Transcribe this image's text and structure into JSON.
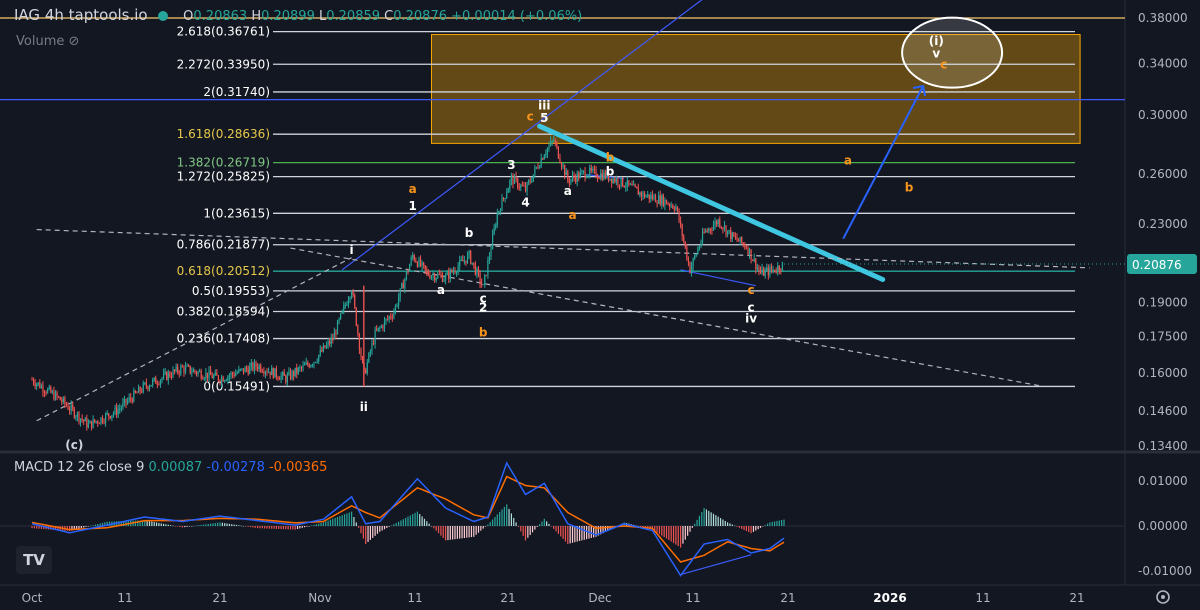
{
  "header": {
    "symbol": "IAG",
    "interval": "4h",
    "source": "taptools.io",
    "open_label": "O",
    "open": "0.20863",
    "high_label": "H",
    "high": "0.20899",
    "low_label": "L",
    "low": "0.20859",
    "close_label": "C",
    "close": "0.20876",
    "change": "+0.00014 (+0.06%)",
    "volume_label": "Volume"
  },
  "colors": {
    "background": "#131722",
    "up": "#26a69a",
    "down": "#ef5350",
    "fib_line": "#d1d4dc",
    "trendline": "#3fc6e0",
    "zone_fill": "#f7a600",
    "macd_line": "#2962ff",
    "signal_line": "#ff6d00"
  },
  "chart_data": [
    {
      "type": "candlestick",
      "title": "IAG 4h taptools.io",
      "price_axis": {
        "ticks": [
          0.38,
          0.34,
          0.3,
          0.26,
          0.23,
          0.19,
          0.175,
          0.16,
          0.146,
          0.134
        ],
        "tick_labels": [
          "0.38000",
          "0.34000",
          "0.30000",
          "0.26000",
          "0.23000",
          "0.19000",
          "0.17500",
          "0.16000",
          "0.14600",
          "0.13400"
        ],
        "scale": "log",
        "last_price": "0.20876"
      },
      "time_axis": {
        "ticks": [
          "Oct",
          "11",
          "21",
          "Nov",
          "11",
          "21",
          "Dec",
          "11",
          "21",
          "2026",
          "11",
          "21"
        ],
        "bold": [
          "2026"
        ]
      },
      "fib_levels": [
        {
          "ratio": "0",
          "price": 0.15491
        },
        {
          "ratio": "0.236",
          "price": 0.17408
        },
        {
          "ratio": "0.382",
          "price": 0.18594
        },
        {
          "ratio": "0.5",
          "price": 0.19553
        },
        {
          "ratio": "0.618",
          "price": 0.20512
        },
        {
          "ratio": "0.786",
          "price": 0.21877
        },
        {
          "ratio": "1",
          "price": 0.23615
        },
        {
          "ratio": "1.272",
          "price": 0.25825
        },
        {
          "ratio": "1.382",
          "price": 0.26719
        },
        {
          "ratio": "1.618",
          "price": 0.28636
        },
        {
          "ratio": "2",
          "price": 0.3174
        },
        {
          "ratio": "2.272",
          "price": 0.3395
        },
        {
          "ratio": "2.618",
          "price": 0.36761
        }
      ],
      "fib_labels": [
        "0(0.15491)",
        "0.236(0.17408)",
        "0.382(0.18594)",
        "0.5(0.19553)",
        "0.618(0.20512)",
        "0.786(0.21877)",
        "1(0.23615)",
        "1.272(0.25825)",
        "1.382(0.26719)",
        "1.618(0.28636)",
        "2(0.31740)",
        "2.272(0.33950)",
        "2.618(0.36761)"
      ],
      "price_path": [
        {
          "d": 0,
          "p": 0.1575
        },
        {
          "d": 3,
          "p": 0.15
        },
        {
          "d": 6,
          "p": 0.141
        },
        {
          "d": 9,
          "p": 0.146
        },
        {
          "d": 12,
          "p": 0.155
        },
        {
          "d": 16,
          "p": 0.162
        },
        {
          "d": 20,
          "p": 0.158
        },
        {
          "d": 24,
          "p": 0.163
        },
        {
          "d": 27,
          "p": 0.158
        },
        {
          "d": 30,
          "p": 0.165
        },
        {
          "d": 32,
          "p": 0.174
        },
        {
          "d": 34,
          "p": 0.197
        },
        {
          "d": 35.3,
          "p": 0.159
        },
        {
          "d": 36.5,
          "p": 0.176
        },
        {
          "d": 38.5,
          "p": 0.186
        },
        {
          "d": 40.5,
          "p": 0.213
        },
        {
          "d": 42,
          "p": 0.204
        },
        {
          "d": 44,
          "p": 0.202
        },
        {
          "d": 46.5,
          "p": 0.213
        },
        {
          "d": 48,
          "p": 0.197
        },
        {
          "d": 49.5,
          "p": 0.236
        },
        {
          "d": 51,
          "p": 0.257
        },
        {
          "d": 52.5,
          "p": 0.25
        },
        {
          "d": 54.5,
          "p": 0.274
        },
        {
          "d": 55.5,
          "p": 0.282
        },
        {
          "d": 57,
          "p": 0.256
        },
        {
          "d": 59,
          "p": 0.261
        },
        {
          "d": 61,
          "p": 0.259
        },
        {
          "d": 63,
          "p": 0.254
        },
        {
          "d": 65,
          "p": 0.247
        },
        {
          "d": 67,
          "p": 0.244
        },
        {
          "d": 68.5,
          "p": 0.24
        },
        {
          "d": 70,
          "p": 0.206
        },
        {
          "d": 71.5,
          "p": 0.225
        },
        {
          "d": 73,
          "p": 0.232
        },
        {
          "d": 74.5,
          "p": 0.223
        },
        {
          "d": 76,
          "p": 0.218
        },
        {
          "d": 77.5,
          "p": 0.204
        },
        {
          "d": 79,
          "p": 0.206
        },
        {
          "d": 80,
          "p": 0.2088
        }
      ],
      "wave_labels": [
        {
          "text": "(c)",
          "d": 4.5,
          "p": 0.133,
          "color": "#d1d4dc"
        },
        {
          "text": "i",
          "d": 34,
          "p": 0.214,
          "color": "#ffffff"
        },
        {
          "text": "ii",
          "d": 35.3,
          "p": 0.146,
          "color": "#ffffff"
        },
        {
          "text": "a",
          "d": 40.5,
          "p": 0.248,
          "color": "#f7931a"
        },
        {
          "text": "1",
          "d": 40.5,
          "p": 0.238,
          "color": "#ffffff"
        },
        {
          "text": "a",
          "d": 43.5,
          "p": 0.194,
          "color": "#ffffff"
        },
        {
          "text": "b",
          "d": 46.5,
          "p": 0.223,
          "color": "#ffffff"
        },
        {
          "text": "c",
          "d": 48,
          "p": 0.19,
          "color": "#ffffff"
        },
        {
          "text": "2",
          "d": 48,
          "p": 0.186,
          "color": "#ffffff"
        },
        {
          "text": "b",
          "d": 48,
          "p": 0.175,
          "color": "#f7931a"
        },
        {
          "text": "3",
          "d": 51,
          "p": 0.263,
          "color": "#ffffff"
        },
        {
          "text": "4",
          "d": 52.5,
          "p": 0.24,
          "color": "#ffffff"
        },
        {
          "text": "c",
          "d": 53,
          "p": 0.296,
          "color": "#f7931a"
        },
        {
          "text": "iii",
          "d": 54.5,
          "p": 0.304,
          "color": "#ffffff"
        },
        {
          "text": "5",
          "d": 54.5,
          "p": 0.295,
          "color": "#ffffff"
        },
        {
          "text": "a",
          "d": 57,
          "p": 0.247,
          "color": "#ffffff"
        },
        {
          "text": "a",
          "d": 57.5,
          "p": 0.233,
          "color": "#f7931a"
        },
        {
          "text": "b",
          "d": 61.5,
          "p": 0.268,
          "color": "#f7931a"
        },
        {
          "text": "b",
          "d": 61.5,
          "p": 0.259,
          "color": "#ffffff"
        },
        {
          "text": "c",
          "d": 76.5,
          "p": 0.194,
          "color": "#f7931a"
        },
        {
          "text": "c",
          "d": 76.5,
          "p": 0.186,
          "color": "#ffffff"
        },
        {
          "text": "iv",
          "d": 76.5,
          "p": 0.181,
          "color": "#ffffff"
        },
        {
          "text": "a",
          "d": 86.8,
          "p": 0.266,
          "color": "#f7931a"
        },
        {
          "text": "b",
          "d": 93.3,
          "p": 0.249,
          "color": "#f7931a"
        },
        {
          "text": "(i)",
          "d": 96.2,
          "p": 0.356,
          "color": "#ffffff"
        },
        {
          "text": "v",
          "d": 96.2,
          "p": 0.345,
          "color": "#ffffff"
        },
        {
          "text": "c",
          "d": 97,
          "p": 0.336,
          "color": "#f7931a"
        }
      ],
      "target_zone": {
        "d_from": 42.5,
        "d_to": 111.5,
        "p_low": 0.28,
        "p_high": 0.365
      },
      "target_circle": {
        "d": 96.5,
        "p": 0.345
      },
      "trendlines": [
        {
          "kind": "channel",
          "d1": 33,
          "p1": 0.2058,
          "d2": 74.5,
          "p2": 0.42,
          "color": "#3d5afe"
        },
        {
          "kind": "downtrend",
          "d1": 54,
          "p1": 0.292,
          "d2": 90.5,
          "p2": 0.201,
          "color": "#3fc6e0"
        },
        {
          "kind": "dashed",
          "d1": 0.5,
          "p1": 0.227,
          "d2": 112.5,
          "p2": 0.2068,
          "color": "#b2b5be"
        },
        {
          "kind": "dashed",
          "d1": 0.5,
          "p1": 0.1425,
          "d2": 34,
          "p2": 0.212,
          "color": "#b2b5be"
        },
        {
          "kind": "dashed",
          "d1": 27.5,
          "p1": 0.217,
          "d2": 107.5,
          "p2": 0.155,
          "color": "#b2b5be"
        },
        {
          "kind": "divergence",
          "d1": 59,
          "p1": 0.2595,
          "d2": 63,
          "p2": 0.257,
          "color": "#3d5afe"
        },
        {
          "kind": "divergence",
          "d1": 69,
          "p1": 0.2058,
          "d2": 77,
          "p2": 0.198,
          "color": "#3d5afe"
        }
      ],
      "projection_arrow": {
        "d1": 86.3,
        "p1": 0.222,
        "d2": 94.8,
        "p2": 0.322,
        "color": "#2962ff"
      },
      "horizontal_marks": [
        {
          "p": 0.3115,
          "color": "#3d5afe"
        },
        {
          "p": 0.38,
          "color": "#f7c76a"
        }
      ]
    },
    {
      "type": "macd",
      "title": "MACD 12 26 close 9",
      "values_text": [
        "0.00087",
        "-0.00278",
        "-0.00365"
      ],
      "axis_ticks": [
        0.01,
        0.0,
        -0.01
      ],
      "axis_labels": [
        "0.01000",
        "0.00000",
        "-0.01000"
      ],
      "macd_path": [
        {
          "d": 0,
          "v": 0.0005
        },
        {
          "d": 4,
          "v": -0.0015
        },
        {
          "d": 8,
          "v": 0.0002
        },
        {
          "d": 12,
          "v": 0.002
        },
        {
          "d": 16,
          "v": 0.001
        },
        {
          "d": 20,
          "v": 0.0022
        },
        {
          "d": 24,
          "v": 0.0012
        },
        {
          "d": 28,
          "v": 0.0002
        },
        {
          "d": 31,
          "v": 0.0015
        },
        {
          "d": 34,
          "v": 0.0065
        },
        {
          "d": 35.5,
          "v": 0.0005
        },
        {
          "d": 37,
          "v": 0.001
        },
        {
          "d": 41,
          "v": 0.0105
        },
        {
          "d": 44,
          "v": 0.004
        },
        {
          "d": 47,
          "v": 0.001
        },
        {
          "d": 48.5,
          "v": 0.002
        },
        {
          "d": 50.5,
          "v": 0.014
        },
        {
          "d": 52.5,
          "v": 0.007
        },
        {
          "d": 54.5,
          "v": 0.0095
        },
        {
          "d": 57,
          "v": 0.0005
        },
        {
          "d": 60,
          "v": -0.002
        },
        {
          "d": 63,
          "v": 0.0005
        },
        {
          "d": 66,
          "v": -0.001
        },
        {
          "d": 69,
          "v": -0.011
        },
        {
          "d": 71.5,
          "v": -0.004
        },
        {
          "d": 74,
          "v": -0.003
        },
        {
          "d": 76.5,
          "v": -0.006
        },
        {
          "d": 78.5,
          "v": -0.005
        },
        {
          "d": 80,
          "v": -0.0027
        }
      ],
      "signal_path": [
        {
          "d": 0,
          "v": 0.0008
        },
        {
          "d": 4,
          "v": -0.0008
        },
        {
          "d": 8,
          "v": -0.0004
        },
        {
          "d": 12,
          "v": 0.0012
        },
        {
          "d": 16,
          "v": 0.0012
        },
        {
          "d": 20,
          "v": 0.0017
        },
        {
          "d": 24,
          "v": 0.0015
        },
        {
          "d": 28,
          "v": 0.0007
        },
        {
          "d": 31,
          "v": 0.001
        },
        {
          "d": 34,
          "v": 0.0045
        },
        {
          "d": 35.5,
          "v": 0.003
        },
        {
          "d": 37,
          "v": 0.0018
        },
        {
          "d": 41,
          "v": 0.0085
        },
        {
          "d": 44,
          "v": 0.006
        },
        {
          "d": 47,
          "v": 0.0025
        },
        {
          "d": 48.5,
          "v": 0.0018
        },
        {
          "d": 50.5,
          "v": 0.011
        },
        {
          "d": 52.5,
          "v": 0.009
        },
        {
          "d": 54.5,
          "v": 0.0085
        },
        {
          "d": 57,
          "v": 0.003
        },
        {
          "d": 60,
          "v": -0.0005
        },
        {
          "d": 63,
          "v": 0.0
        },
        {
          "d": 66,
          "v": -0.0005
        },
        {
          "d": 69,
          "v": -0.008
        },
        {
          "d": 71.5,
          "v": -0.0065
        },
        {
          "d": 74,
          "v": -0.0035
        },
        {
          "d": 76.5,
          "v": -0.005
        },
        {
          "d": 78.5,
          "v": -0.0055
        },
        {
          "d": 80,
          "v": -0.0036
        }
      ],
      "divergence": {
        "d1": 69,
        "v1": -0.0108,
        "d2": 76.5,
        "v2": -0.0064
      }
    }
  ]
}
